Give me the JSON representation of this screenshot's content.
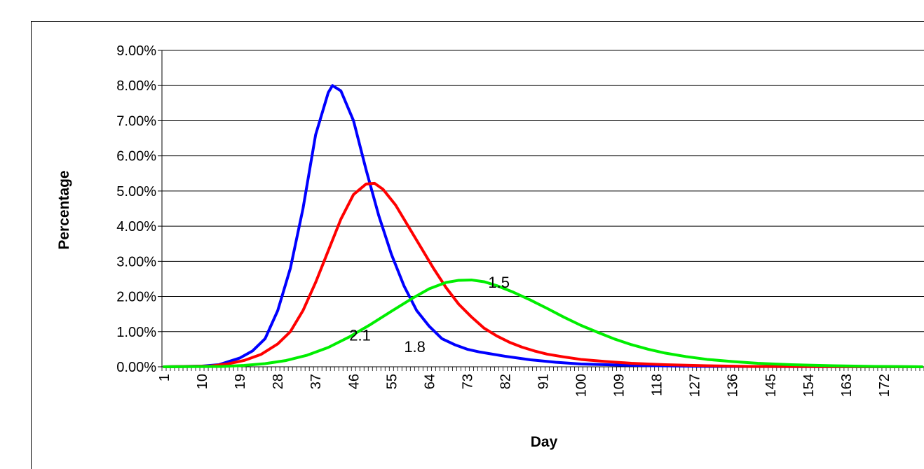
{
  "chart_data": {
    "type": "line",
    "xlabel": "Day",
    "ylabel": "Percentage",
    "x_range": [
      1,
      181
    ],
    "ylim": [
      0,
      0.09
    ],
    "y_ticks": [
      "0.00%",
      "1.00%",
      "2.00%",
      "3.00%",
      "4.00%",
      "5.00%",
      "6.00%",
      "7.00%",
      "8.00%",
      "9.00%"
    ],
    "x_tick_labels": [
      "1",
      "10",
      "19",
      "28",
      "37",
      "46",
      "55",
      "64",
      "73",
      "82",
      "91",
      "100",
      "109",
      "118",
      "127",
      "136",
      "145",
      "154",
      "163",
      "172"
    ],
    "grid": "horizontal",
    "legend": "none",
    "series": [
      {
        "name": "2.1",
        "color": "#0000ff",
        "points": [
          [
            1,
            0
          ],
          [
            10,
            0.0002
          ],
          [
            14,
            0.0006
          ],
          [
            19,
            0.0025
          ],
          [
            22,
            0.0045
          ],
          [
            25,
            0.008
          ],
          [
            28,
            0.016
          ],
          [
            31,
            0.028
          ],
          [
            34,
            0.045
          ],
          [
            37,
            0.066
          ],
          [
            40,
            0.078
          ],
          [
            41,
            0.08
          ],
          [
            43,
            0.0785
          ],
          [
            46,
            0.07
          ],
          [
            49,
            0.056
          ],
          [
            52,
            0.043
          ],
          [
            55,
            0.032
          ],
          [
            58,
            0.023
          ],
          [
            61,
            0.016
          ],
          [
            64,
            0.0115
          ],
          [
            67,
            0.008
          ],
          [
            70,
            0.0063
          ],
          [
            73,
            0.005
          ],
          [
            76,
            0.0042
          ],
          [
            82,
            0.003
          ],
          [
            88,
            0.002
          ],
          [
            94,
            0.0013
          ],
          [
            100,
            0.0008
          ],
          [
            109,
            0.0005
          ],
          [
            118,
            0.0003
          ],
          [
            130,
            0.0001
          ],
          [
            181,
            0
          ]
        ]
      },
      {
        "name": "1.8",
        "color": "#ff0000",
        "points": [
          [
            1,
            0
          ],
          [
            12,
            0.0002
          ],
          [
            16,
            0.0008
          ],
          [
            20,
            0.0018
          ],
          [
            24,
            0.0035
          ],
          [
            28,
            0.0065
          ],
          [
            31,
            0.01
          ],
          [
            34,
            0.016
          ],
          [
            37,
            0.024
          ],
          [
            40,
            0.033
          ],
          [
            43,
            0.042
          ],
          [
            46,
            0.049
          ],
          [
            49,
            0.052
          ],
          [
            51,
            0.0522
          ],
          [
            53,
            0.0505
          ],
          [
            56,
            0.046
          ],
          [
            59,
            0.04
          ],
          [
            62,
            0.034
          ],
          [
            65,
            0.028
          ],
          [
            68,
            0.0225
          ],
          [
            71,
            0.0178
          ],
          [
            74,
            0.0142
          ],
          [
            77,
            0.011
          ],
          [
            80,
            0.0088
          ],
          [
            83,
            0.007
          ],
          [
            86,
            0.0056
          ],
          [
            89,
            0.0045
          ],
          [
            92,
            0.0036
          ],
          [
            96,
            0.0028
          ],
          [
            100,
            0.0021
          ],
          [
            106,
            0.0015
          ],
          [
            112,
            0.001
          ],
          [
            120,
            0.0006
          ],
          [
            130,
            0.0003
          ],
          [
            140,
            0.0001
          ],
          [
            181,
            0
          ]
        ]
      },
      {
        "name": "1.5",
        "color": "#00ee00",
        "points": [
          [
            1,
            0
          ],
          [
            15,
            0.0001
          ],
          [
            20,
            0.0004
          ],
          [
            25,
            0.0009
          ],
          [
            30,
            0.0018
          ],
          [
            35,
            0.0033
          ],
          [
            40,
            0.0055
          ],
          [
            45,
            0.0085
          ],
          [
            50,
            0.012
          ],
          [
            55,
            0.0158
          ],
          [
            60,
            0.0195
          ],
          [
            64,
            0.0222
          ],
          [
            68,
            0.024
          ],
          [
            71,
            0.0246
          ],
          [
            74,
            0.0247
          ],
          [
            77,
            0.0242
          ],
          [
            80,
            0.0231
          ],
          [
            84,
            0.0212
          ],
          [
            88,
            0.019
          ],
          [
            92,
            0.0166
          ],
          [
            96,
            0.0141
          ],
          [
            100,
            0.0118
          ],
          [
            104,
            0.0098
          ],
          [
            108,
            0.0079
          ],
          [
            112,
            0.0063
          ],
          [
            116,
            0.005
          ],
          [
            120,
            0.0039
          ],
          [
            125,
            0.0029
          ],
          [
            130,
            0.0021
          ],
          [
            136,
            0.0015
          ],
          [
            142,
            0.001
          ],
          [
            150,
            0.0006
          ],
          [
            160,
            0.0003
          ],
          [
            170,
            0.0001
          ],
          [
            181,
            0
          ]
        ]
      }
    ]
  }
}
